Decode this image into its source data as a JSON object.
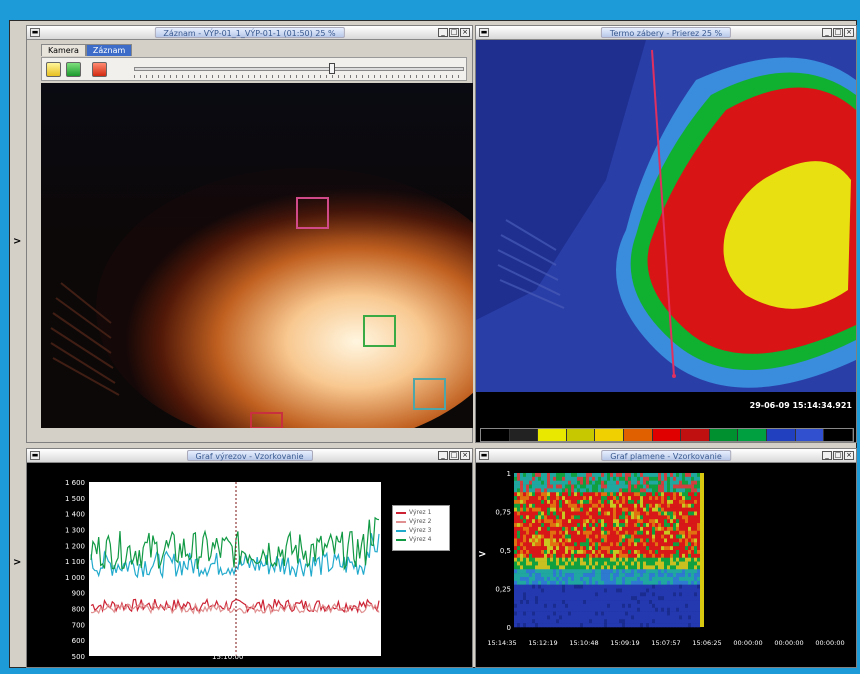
{
  "app": {
    "background": "#1d9ad8"
  },
  "win_camera": {
    "title": "Záznam - VÝP-01_1_VÝP-01-1 (01:50) 25 %",
    "tabs": [
      {
        "label": "Kamera",
        "active": false
      },
      {
        "label": "Záznam",
        "active": true
      }
    ],
    "toolbar": {
      "open_icon": "open-folder-icon",
      "play_icon": "play-icon",
      "stop_icon": "stop-icon"
    },
    "slider": {
      "position_fraction": 0.6
    },
    "side_arrow": ">"
  },
  "win_thermo": {
    "title": "Termo zábery - Prierez 25 %",
    "timestamp": "29-06-09 15:14:34.921",
    "palette": [
      "#000000",
      "#222222",
      "#e8e800",
      "#c8c800",
      "#f0d000",
      "#e06000",
      "#e00000",
      "#c01010",
      "#009030",
      "#00a040",
      "#2040c0",
      "#3050d0",
      "#000000"
    ]
  },
  "win_graph": {
    "title": "Graf výrezov - Vzorkovanie",
    "side_arrow": ">",
    "x_label": "15:10:00",
    "legend": [
      {
        "name": "Výrez 1",
        "color": "#cc2233"
      },
      {
        "name": "Výrez 2",
        "color": "#e09090"
      },
      {
        "name": "Výrez 3",
        "color": "#22aacc"
      },
      {
        "name": "Výrez 4",
        "color": "#119944"
      }
    ]
  },
  "win_spectrum": {
    "title": "Graf plamene - Vzorkovanie",
    "side_arrow": ">",
    "x_labels": [
      "15:14:35",
      "15:12:19",
      "15:10:48",
      "15:09:19",
      "15:07:57",
      "15:06:25",
      "00:00:00",
      "00:00:00",
      "00:00:00"
    ],
    "y_labels": [
      "1",
      "0,75",
      "0,5",
      "0,25",
      "0"
    ]
  },
  "chart_data": [
    {
      "type": "line",
      "title": "Graf výrezov - Vzorkovanie",
      "xlabel": "15:10:00",
      "ylabel": "",
      "y_ticks": [
        "1 600",
        "1 500",
        "1 400",
        "1 300",
        "1 200",
        "1 100",
        "1 000",
        "900",
        "800",
        "700",
        "600",
        "500"
      ],
      "ylim": [
        500,
        1600
      ],
      "series": [
        {
          "name": "Výrez 1",
          "color": "#cc2233",
          "level": 820,
          "noise": 40
        },
        {
          "name": "Výrez 2",
          "color": "#e09090",
          "level": 800,
          "noise": 30
        },
        {
          "name": "Výrez 3",
          "color": "#22aacc",
          "level": 1080,
          "noise": 80
        },
        {
          "name": "Výrez 4",
          "color": "#119944",
          "level": 1170,
          "noise": 120
        }
      ]
    },
    {
      "type": "heatmap",
      "title": "Graf plamene - Vzorkovanie",
      "x_ticks": [
        "15:14:35",
        "15:12:19",
        "15:10:48",
        "15:09:19",
        "15:07:57",
        "15:06:25",
        "00:00:00",
        "00:00:00",
        "00:00:00"
      ],
      "y_ticks": [
        "1",
        "0,75",
        "0,5",
        "0,25",
        "0"
      ],
      "ylim": [
        0,
        1
      ]
    }
  ]
}
